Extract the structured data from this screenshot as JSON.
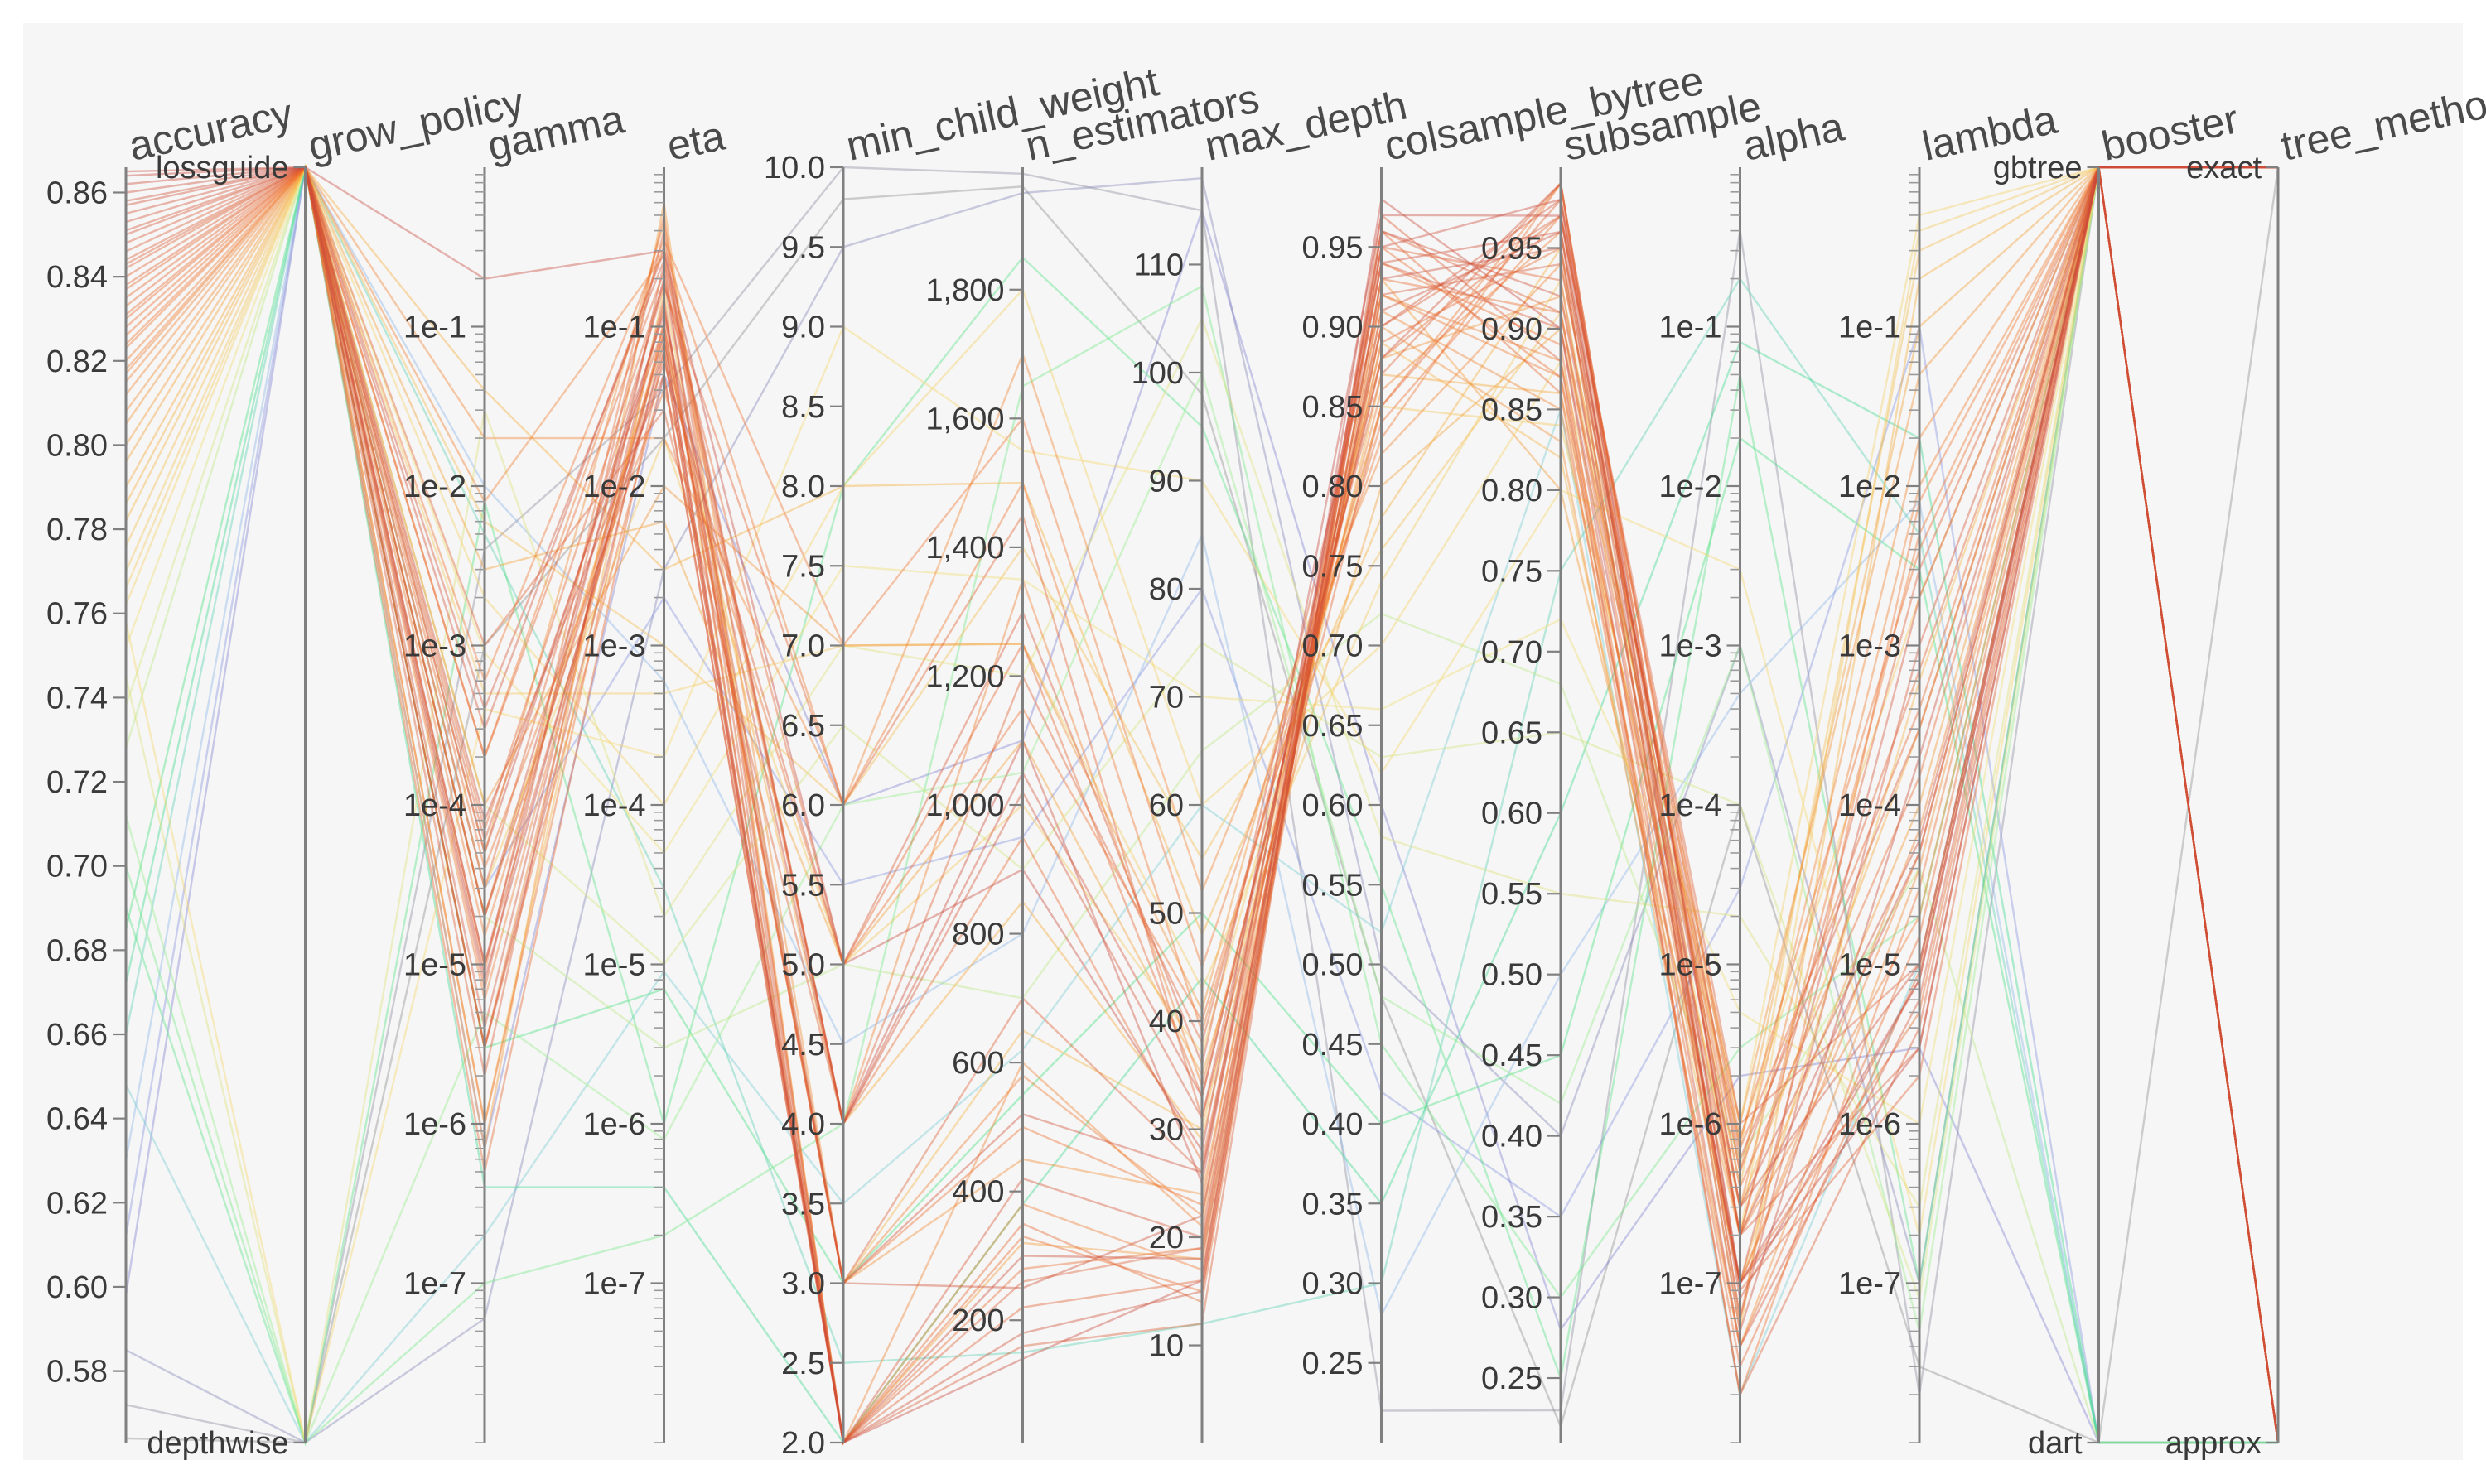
{
  "chart_data": {
    "type": "parallel_coordinates",
    "title": "",
    "color_by": "accuracy",
    "colormap": [
      "#8c8c8c",
      "#7f7fd8",
      "#8fc7ef",
      "#2fdd80",
      "#9cef8a",
      "#f3df72",
      "#f7a836",
      "#ee6b2a",
      "#c8473c"
    ],
    "axes": [
      {
        "key": "accuracy",
        "label": "accuracy",
        "scale": "linear",
        "range": [
          0.563,
          0.866
        ],
        "ticks": [
          0.58,
          0.6,
          0.62,
          0.64,
          0.66,
          0.68,
          0.7,
          0.72,
          0.74,
          0.76,
          0.78,
          0.8,
          0.82,
          0.84,
          0.86
        ],
        "tick_labels": [
          "0.58",
          "0.60",
          "0.62",
          "0.64",
          "0.66",
          "0.68",
          "0.70",
          "0.72",
          "0.74",
          "0.76",
          "0.78",
          "0.80",
          "0.82",
          "0.84",
          "0.86"
        ]
      },
      {
        "key": "grow_policy",
        "label": "grow_policy",
        "scale": "categorical",
        "categories": [
          "depthwise",
          "lossguide"
        ],
        "tick_labels": [
          "depthwise",
          "lossguide"
        ]
      },
      {
        "key": "gamma",
        "label": "gamma",
        "scale": "log",
        "range": [
          1e-08,
          1.0
        ],
        "ticks": [
          1e-07,
          1e-06,
          1e-05,
          0.0001,
          0.001,
          0.01,
          0.1
        ],
        "tick_labels": [
          "1e-7",
          "1e-6",
          "1e-5",
          "1e-4",
          "1e-3",
          "1e-2",
          "1e-1"
        ]
      },
      {
        "key": "eta",
        "label": "eta",
        "scale": "log",
        "range": [
          1e-08,
          1.0
        ],
        "ticks": [
          1e-07,
          1e-06,
          1e-05,
          0.0001,
          0.001,
          0.01,
          0.1
        ],
        "tick_labels": [
          "1e-7",
          "1e-6",
          "1e-5",
          "1e-4",
          "1e-3",
          "1e-2",
          "1e-1"
        ]
      },
      {
        "key": "min_child_weight",
        "label": "min_child_weight",
        "scale": "linear",
        "range": [
          2.0,
          10.0
        ],
        "ticks": [
          2.0,
          2.5,
          3.0,
          3.5,
          4.0,
          4.5,
          5.0,
          5.5,
          6.0,
          6.5,
          7.0,
          7.5,
          8.0,
          8.5,
          9.0,
          9.5,
          10.0
        ],
        "tick_labels": [
          "2.0",
          "2.5",
          "3.0",
          "3.5",
          "4.0",
          "4.5",
          "5.0",
          "5.5",
          "6.0",
          "6.5",
          "7.0",
          "7.5",
          "8.0",
          "8.5",
          "9.0",
          "9.5",
          "10.0"
        ]
      },
      {
        "key": "n_estimators",
        "label": "n_estimators",
        "scale": "linear",
        "range": [
          10,
          1990
        ],
        "ticks": [
          200,
          400,
          600,
          800,
          1000,
          1200,
          1400,
          1600,
          1800
        ],
        "tick_labels": [
          "200",
          "400",
          "600",
          "800",
          "1,000",
          "1,200",
          "1,400",
          "1,600",
          "1,800"
        ]
      },
      {
        "key": "max_depth",
        "label": "max_depth",
        "scale": "linear",
        "range": [
          1,
          119
        ],
        "ticks": [
          10,
          20,
          30,
          40,
          50,
          60,
          70,
          80,
          90,
          100,
          110
        ],
        "tick_labels": [
          "10",
          "20",
          "30",
          "40",
          "50",
          "60",
          "70",
          "80",
          "90",
          "100",
          "110"
        ]
      },
      {
        "key": "colsample_bytree",
        "label": "colsample_bytree",
        "scale": "linear",
        "range": [
          0.2,
          1.0
        ],
        "ticks": [
          0.25,
          0.3,
          0.35,
          0.4,
          0.45,
          0.5,
          0.55,
          0.6,
          0.65,
          0.7,
          0.75,
          0.8,
          0.85,
          0.9,
          0.95
        ],
        "tick_labels": [
          "0.25",
          "0.30",
          "0.35",
          "0.40",
          "0.45",
          "0.50",
          "0.55",
          "0.60",
          "0.65",
          "0.70",
          "0.75",
          "0.80",
          "0.85",
          "0.90",
          "0.95"
        ]
      },
      {
        "key": "subsample",
        "label": "subsample",
        "scale": "linear",
        "range": [
          0.21,
          1.0
        ],
        "ticks": [
          0.25,
          0.3,
          0.35,
          0.4,
          0.45,
          0.5,
          0.55,
          0.6,
          0.65,
          0.7,
          0.75,
          0.8,
          0.85,
          0.9,
          0.95
        ],
        "tick_labels": [
          "0.25",
          "0.30",
          "0.35",
          "0.40",
          "0.45",
          "0.50",
          "0.55",
          "0.60",
          "0.65",
          "0.70",
          "0.75",
          "0.80",
          "0.85",
          "0.90",
          "0.95"
        ]
      },
      {
        "key": "alpha",
        "label": "alpha",
        "scale": "log",
        "range": [
          1e-08,
          1.0
        ],
        "ticks": [
          1e-07,
          1e-06,
          1e-05,
          0.0001,
          0.001,
          0.01,
          0.1
        ],
        "tick_labels": [
          "1e-7",
          "1e-6",
          "1e-5",
          "1e-4",
          "1e-3",
          "1e-2",
          "1e-1"
        ]
      },
      {
        "key": "lambda",
        "label": "lambda",
        "scale": "log",
        "range": [
          1e-08,
          1.0
        ],
        "ticks": [
          1e-07,
          1e-06,
          1e-05,
          0.0001,
          0.001,
          0.01,
          0.1
        ],
        "tick_labels": [
          "1e-7",
          "1e-6",
          "1e-5",
          "1e-4",
          "1e-3",
          "1e-2",
          "1e-1"
        ]
      },
      {
        "key": "booster",
        "label": "booster",
        "scale": "categorical",
        "categories": [
          "dart",
          "gbtree"
        ],
        "tick_labels": [
          "dart",
          "gbtree"
        ]
      },
      {
        "key": "tree_method",
        "label": "tree_method",
        "scale": "categorical",
        "categories": [
          "approx",
          "exact"
        ],
        "tick_labels": [
          "approx",
          "exact"
        ]
      }
    ],
    "trials": [
      [
        0.865,
        1,
        0.2,
        0.3,
        5.0,
        900,
        28,
        0.97,
        0.97,
        1e-07,
        3e-06,
        1,
        1
      ],
      [
        0.862,
        1,
        5e-05,
        0.12,
        4.0,
        1100,
        25,
        0.95,
        0.98,
        2e-07,
        5e-05,
        1,
        1
      ],
      [
        0.86,
        1,
        3e-06,
        0.08,
        2.0,
        300,
        18,
        0.93,
        0.95,
        5e-08,
        0.0002,
        1,
        0
      ],
      [
        0.858,
        1,
        1e-05,
        0.2,
        3.0,
        250,
        22,
        0.91,
        0.96,
        8e-08,
        8e-06,
        1,
        1
      ],
      [
        0.855,
        1,
        8e-05,
        0.05,
        2.0,
        180,
        15,
        0.96,
        0.92,
        3e-07,
        1e-05,
        1,
        0
      ],
      [
        0.853,
        1,
        0.0003,
        0.3,
        4.0,
        1050,
        33,
        0.88,
        0.99,
        1e-07,
        0.002,
        1,
        1
      ],
      [
        0.85,
        1,
        4e-06,
        0.15,
        2.0,
        420,
        20,
        0.94,
        0.9,
        4e-08,
        6e-06,
        1,
        0
      ],
      [
        0.848,
        1,
        2e-05,
        0.06,
        5.0,
        1300,
        36,
        0.92,
        0.94,
        6e-07,
        0.0003,
        1,
        1
      ],
      [
        0.846,
        1,
        2e-06,
        0.25,
        2.0,
        160,
        12,
        0.97,
        0.88,
        2e-08,
        4e-06,
        1,
        0
      ],
      [
        0.844,
        1,
        6e-05,
        0.1,
        3.0,
        700,
        26,
        0.9,
        0.97,
        1e-06,
        1e-05,
        1,
        1
      ],
      [
        0.842,
        1,
        0.001,
        0.03,
        4.0,
        1200,
        38,
        0.87,
        0.99,
        2e-07,
        0.003,
        1,
        1
      ],
      [
        0.84,
        1,
        7e-06,
        0.4,
        2.0,
        220,
        16,
        0.95,
        0.93,
        9e-08,
        2e-06,
        1,
        0
      ],
      [
        0.838,
        1,
        3e-05,
        0.18,
        6.0,
        1450,
        31,
        0.85,
        0.98,
        5e-07,
        0.0007,
        1,
        1
      ],
      [
        0.835,
        1,
        5e-07,
        0.07,
        2.0,
        350,
        14,
        0.96,
        0.86,
        3e-08,
        9e-06,
        1,
        0
      ],
      [
        0.833,
        1,
        0.0002,
        0.22,
        4.0,
        950,
        27,
        0.89,
        0.95,
        4e-07,
        0.00015,
        1,
        1
      ],
      [
        0.83,
        1,
        9e-06,
        0.5,
        2.0,
        280,
        19,
        0.93,
        0.91,
        1e-07,
        5e-06,
        1,
        0
      ],
      [
        0.828,
        1,
        4e-05,
        0.04,
        5.0,
        1150,
        40,
        0.84,
        0.97,
        8e-07,
        0.004,
        1,
        1
      ],
      [
        0.826,
        1,
        1e-06,
        0.11,
        3.0,
        500,
        23,
        0.94,
        0.89,
        2e-08,
        3e-05,
        1,
        0
      ],
      [
        0.823,
        1,
        0.0006,
        0.35,
        7.0,
        1600,
        45,
        0.83,
        0.99,
        6e-08,
        0.008,
        1,
        1
      ],
      [
        0.82,
        1,
        1.5e-05,
        0.09,
        2.0,
        380,
        17,
        0.92,
        0.87,
        2e-07,
        2e-05,
        1,
        0
      ],
      [
        0.817,
        1,
        0.008,
        0.28,
        4.0,
        1350,
        34,
        0.86,
        0.96,
        3e-07,
        0.01,
        1,
        1
      ],
      [
        0.815,
        1,
        3e-06,
        0.14,
        2.0,
        600,
        21,
        0.91,
        0.85,
        1e-07,
        7e-05,
        1,
        0
      ],
      [
        0.812,
        1,
        0.02,
        0.02,
        6.0,
        1700,
        52,
        0.82,
        0.94,
        5e-07,
        0.02,
        1,
        1
      ],
      [
        0.808,
        1,
        5e-05,
        0.45,
        3.0,
        450,
        24,
        0.9,
        0.83,
        4e-08,
        4e-05,
        1,
        0
      ],
      [
        0.805,
        1,
        0.0001,
        0.01,
        7.0,
        1250,
        41,
        0.88,
        0.92,
        1e-06,
        0.05,
        1,
        1
      ],
      [
        0.8,
        1,
        7e-07,
        0.6,
        2.0,
        320,
        18,
        0.93,
        0.8,
        2e-07,
        0.0001,
        1,
        0
      ],
      [
        0.796,
        1,
        0.003,
        0.006,
        5.0,
        1100,
        35,
        0.8,
        0.9,
        7e-07,
        0.1,
        1,
        1
      ],
      [
        0.79,
        1,
        2e-05,
        0.08,
        4.0,
        850,
        29,
        0.87,
        0.86,
        3e-07,
        0.0003,
        1,
        1
      ],
      [
        0.786,
        1,
        0.04,
        0.003,
        8.0,
        1500,
        48,
        0.78,
        0.95,
        5e-08,
        0.2,
        1,
        1
      ],
      [
        0.782,
        1,
        1e-06,
        0.17,
        3.0,
        650,
        30,
        0.89,
        0.82,
        1e-07,
        0.0006,
        1,
        0
      ],
      [
        0.776,
        1,
        0.006,
        0.001,
        6.0,
        1400,
        55,
        0.76,
        0.91,
        4e-07,
        0.3,
        1,
        1
      ],
      [
        0.77,
        1,
        3e-05,
        0.02,
        5.0,
        1000,
        37,
        0.85,
        0.84,
        8e-07,
        0.002,
        1,
        1
      ],
      [
        0.766,
        1,
        0.0005,
        0.0005,
        7.0,
        1250,
        43,
        0.74,
        0.93,
        2e-07,
        0.4,
        1,
        1
      ],
      [
        0.762,
        1,
        0.002,
        0.0001,
        8.0,
        1800,
        60,
        0.7,
        0.88,
        1e-06,
        0.5,
        1,
        1
      ],
      [
        0.758,
        0,
        0.0004,
        0.0002,
        9.0,
        1550,
        90,
        0.62,
        0.8,
        0.003,
        2e-07,
        1,
        1
      ],
      [
        0.752,
        1,
        0.0009,
        5e-05,
        7.5,
        1350,
        70,
        0.66,
        0.72,
        5e-06,
        1e-06,
        1,
        1
      ],
      [
        0.745,
        0,
        0.03,
        2e-05,
        7.0,
        1200,
        105,
        0.58,
        0.55,
        2e-05,
        3e-07,
        1,
        1
      ],
      [
        0.738,
        1,
        0.0001,
        1e-05,
        6.5,
        900,
        75,
        0.63,
        0.65,
        0.0001,
        8e-08,
        1,
        1
      ],
      [
        0.728,
        1,
        2e-05,
        3e-06,
        5.0,
        700,
        65,
        0.72,
        0.68,
        6e-07,
        4e-05,
        0,
        0
      ],
      [
        0.712,
        0,
        5e-06,
        8e-07,
        6.0,
        1050,
        100,
        0.48,
        0.42,
        0.001,
        5e-08,
        1,
        1
      ],
      [
        0.7,
        0,
        1e-07,
        2e-07,
        4.0,
        1650,
        108,
        0.45,
        0.3,
        3e-06,
        2e-05,
        1,
        1
      ],
      [
        0.69,
        0,
        0.008,
        1e-06,
        8.0,
        1850,
        95,
        0.55,
        0.25,
        0.05,
        1e-07,
        1,
        1
      ],
      [
        0.685,
        1,
        3e-06,
        7e-06,
        3.0,
        550,
        50,
        0.4,
        0.45,
        0.02,
        0.003,
        0,
        0
      ],
      [
        0.672,
        1,
        4e-07,
        4e-07,
        2.0,
        380,
        44,
        0.35,
        0.6,
        0.08,
        0.02,
        0,
        0
      ],
      [
        0.66,
        1,
        0.005,
        3e-05,
        2.5,
        150,
        12,
        0.3,
        0.75,
        0.2,
        0.005,
        0,
        0
      ],
      [
        0.648,
        0,
        2e-07,
        9e-06,
        3.5,
        620,
        60,
        0.52,
        0.85,
        2e-08,
        1e-05,
        1,
        1
      ],
      [
        0.63,
        1,
        0.01,
        0.0006,
        4.5,
        800,
        85,
        0.28,
        0.5,
        0.0005,
        0.008,
        0,
        0
      ],
      [
        0.612,
        1,
        3e-05,
        0.002,
        5.5,
        950,
        80,
        0.42,
        0.35,
        3e-05,
        0.1,
        0,
        0
      ],
      [
        0.598,
        1,
        7e-07,
        0.05,
        6.0,
        1100,
        115,
        0.6,
        0.28,
        2e-06,
        3e-06,
        0,
        0
      ],
      [
        0.585,
        0,
        6e-08,
        0.003,
        9.5,
        1950,
        118,
        0.5,
        0.4,
        0.001,
        1e-07,
        1,
        1
      ],
      [
        0.572,
        0,
        0.004,
        0.04,
        10.0,
        1980,
        115,
        0.22,
        0.23,
        0.4,
        2e-08,
        1,
        1
      ],
      [
        0.564,
        0,
        0.001,
        0.02,
        9.8,
        1960,
        98,
        0.48,
        0.22,
        0.0001,
        3e-08,
        0,
        1
      ],
      [
        0.864,
        1,
        8e-06,
        0.09,
        2.0,
        140,
        16,
        0.98,
        0.9,
        1e-07,
        8e-06,
        1,
        0
      ],
      [
        0.857,
        1,
        2e-05,
        0.13,
        3.0,
        520,
        26,
        0.94,
        0.96,
        3e-07,
        6e-05,
        1,
        1
      ],
      [
        0.851,
        1,
        0.0004,
        0.26,
        4.0,
        1020,
        31,
        0.9,
        0.98,
        6e-08,
        0.001,
        1,
        1
      ],
      [
        0.843,
        1,
        1e-05,
        0.07,
        2.0,
        260,
        19,
        0.96,
        0.91,
        2e-07,
        3e-06,
        1,
        0
      ],
      [
        0.837,
        1,
        7e-05,
        0.19,
        5.0,
        1250,
        33,
        0.88,
        0.97,
        7e-07,
        0.0004,
        1,
        1
      ],
      [
        0.831,
        1,
        3e-06,
        0.05,
        2.0,
        330,
        15,
        0.95,
        0.87,
        4e-08,
        1.5e-05,
        1,
        0
      ],
      [
        0.824,
        1,
        0.0002,
        0.32,
        6.0,
        1500,
        39,
        0.85,
        0.99,
        2e-07,
        0.005,
        1,
        1
      ],
      [
        0.818,
        1,
        6e-06,
        0.1,
        3.0,
        580,
        22,
        0.92,
        0.88,
        1e-07,
        5e-05,
        1,
        0
      ]
    ]
  }
}
